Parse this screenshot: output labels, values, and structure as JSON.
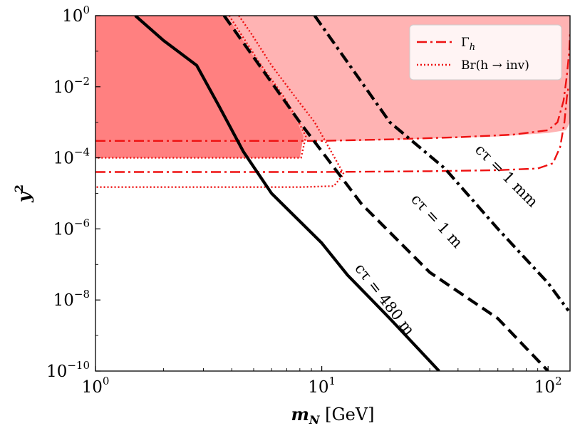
{
  "chart_data": {
    "type": "line",
    "title": "",
    "xlabel": {
      "var": "m",
      "sub": "N",
      "unit": "[GeV]"
    },
    "ylabel": {
      "var": "y",
      "sup": "2"
    },
    "xscale": "log",
    "yscale": "log",
    "xlim": [
      1,
      125
    ],
    "ylim": [
      1e-10,
      1
    ],
    "x_ticks": [
      {
        "value": 1,
        "base": "10",
        "exp": "0"
      },
      {
        "value": 10,
        "base": "10",
        "exp": "1"
      },
      {
        "value": 100,
        "base": "10",
        "exp": "2"
      }
    ],
    "y_ticks": [
      {
        "value": 1,
        "base": "10",
        "exp": "0"
      },
      {
        "value": 0.01,
        "base": "10",
        "exp": "−2"
      },
      {
        "value": 0.0001,
        "base": "10",
        "exp": "−4"
      },
      {
        "value": 1e-06,
        "base": "10",
        "exp": "−6"
      },
      {
        "value": 1e-08,
        "base": "10",
        "exp": "−8"
      },
      {
        "value": 1e-10,
        "base": "10",
        "exp": "−10"
      }
    ],
    "legend": {
      "position": "top-right",
      "entries": [
        {
          "key": "gamma",
          "label": "Γ",
          "sub": "h",
          "style": "dashdot",
          "color": "#ee1111"
        },
        {
          "key": "br",
          "label": "Br(h → inv)",
          "style": "dotted",
          "color": "#ee1111"
        }
      ]
    },
    "colors": {
      "black": "#000000",
      "red": "#ee1111",
      "fill_dark": "#ff8080",
      "fill_light": "#ffb3b3"
    },
    "excluded_regions": [
      {
        "name": "gamma-excluded-region",
        "color": "#ffb3b3",
        "points": [
          [
            3.6,
            1
          ],
          [
            125,
            1
          ],
          [
            125,
            0.001
          ],
          [
            120,
            0.0006
          ],
          [
            100,
            0.0005
          ],
          [
            60,
            0.0004
          ],
          [
            30,
            0.00035
          ],
          [
            15,
            0.0003
          ],
          [
            8,
            0.0003
          ],
          [
            6,
            0.0006
          ],
          [
            5,
            0.003
          ],
          [
            4.5,
            0.03
          ],
          [
            4.0,
            0.3
          ]
        ]
      },
      {
        "name": "br-excluded-region",
        "color": "#ff8080",
        "points": [
          [
            1,
            1
          ],
          [
            3.8,
            1
          ],
          [
            4.3,
            0.3
          ],
          [
            5.3,
            0.04
          ],
          [
            6.6,
            0.006
          ],
          [
            7.7,
            0.0012
          ],
          [
            8.3,
            0.0004
          ],
          [
            8.0,
            0.0001
          ],
          [
            6,
            0.0001
          ],
          [
            1,
            0.0001
          ]
        ]
      }
    ],
    "series": [
      {
        "name": "gamma-upper-line",
        "style": "dashdot",
        "color": "#ee1111",
        "points": [
          [
            1,
            0.0003
          ],
          [
            5,
            0.0003
          ],
          [
            10,
            0.0003
          ],
          [
            20,
            0.00033
          ],
          [
            40,
            0.00038
          ],
          [
            70,
            0.00045
          ],
          [
            100,
            0.0006
          ],
          [
            110,
            0.001
          ],
          [
            117,
            0.004
          ],
          [
            121,
            0.02
          ],
          [
            124,
            0.1
          ],
          [
            125,
            0.3
          ]
        ]
      },
      {
        "name": "gamma-lower-line",
        "style": "dashdot",
        "color": "#ee1111",
        "points": [
          [
            1,
            4e-05
          ],
          [
            10,
            4e-05
          ],
          [
            30,
            4.2e-05
          ],
          [
            60,
            4.5e-05
          ],
          [
            90,
            5e-05
          ],
          [
            105,
            7e-05
          ],
          [
            113,
            0.0002
          ],
          [
            118,
            0.001
          ],
          [
            121,
            0.005
          ],
          [
            123,
            0.01
          ]
        ]
      },
      {
        "name": "br-upper-line",
        "style": "dotted",
        "color": "#ee1111",
        "points": [
          [
            3.9,
            1
          ],
          [
            4.4,
            0.3
          ],
          [
            5.4,
            0.04
          ],
          [
            6.7,
            0.006
          ],
          [
            7.8,
            0.0012
          ],
          [
            8.5,
            0.0004
          ],
          [
            8.1,
            0.0001
          ],
          [
            6,
            0.0001
          ],
          [
            1,
            0.0001
          ]
        ]
      },
      {
        "name": "br-lower-line",
        "style": "dotted",
        "color": "#ee1111",
        "points": [
          [
            4.3,
            1
          ],
          [
            4.9,
            0.3
          ],
          [
            6.0,
            0.04
          ],
          [
            7.5,
            0.006
          ],
          [
            9.3,
            0.001
          ],
          [
            11,
            0.00015
          ],
          [
            12.5,
            3.5e-05
          ],
          [
            11.3,
            1.6e-05
          ],
          [
            8,
            1.5e-05
          ],
          [
            1,
            1.5e-05
          ]
        ]
      },
      {
        "name": "ctau-480m-line",
        "style": "solid",
        "color": "#000000",
        "label": "cτ = 480 m",
        "points": [
          [
            1.5,
            1
          ],
          [
            2,
            0.2
          ],
          [
            2.8,
            0.04
          ],
          [
            3.5,
            0.003
          ],
          [
            4.5,
            0.00015
          ],
          [
            6,
            1e-05
          ],
          [
            10,
            4e-07
          ],
          [
            13,
            5e-08
          ],
          [
            20,
            3e-09
          ],
          [
            33,
            1e-10
          ]
        ]
      },
      {
        "name": "ctau-1m-line",
        "style": "dashed",
        "color": "#000000",
        "label": "cτ = 1 m",
        "points": [
          [
            3.7,
            1
          ],
          [
            8,
            0.001
          ],
          [
            15,
            5e-06
          ],
          [
            30,
            6e-08
          ],
          [
            60,
            3e-09
          ],
          [
            100,
            1e-10
          ]
        ]
      },
      {
        "name": "ctau-1mm-line",
        "style": "dashdot",
        "color": "#000000",
        "label": "cτ = 1 mm",
        "points": [
          [
            9.3,
            1
          ],
          [
            20,
            0.001
          ],
          [
            35,
            5e-05
          ],
          [
            60,
            1e-06
          ],
          [
            100,
            3e-08
          ],
          [
            123,
            5e-09
          ]
        ]
      }
    ],
    "curve_labels": [
      {
        "name": "ctau-480m-label",
        "text": "cτ = 480 m",
        "at": [
          18.8,
          1e-08
        ],
        "angle": 52
      },
      {
        "name": "ctau-1m-label",
        "text": "cτ = 1 m",
        "at": [
          32,
          1.6e-06
        ],
        "angle": 47
      },
      {
        "name": "ctau-1mm-label",
        "text": "cτ = 1 mm",
        "at": [
          65,
          3e-05
        ],
        "angle": 45
      }
    ]
  }
}
